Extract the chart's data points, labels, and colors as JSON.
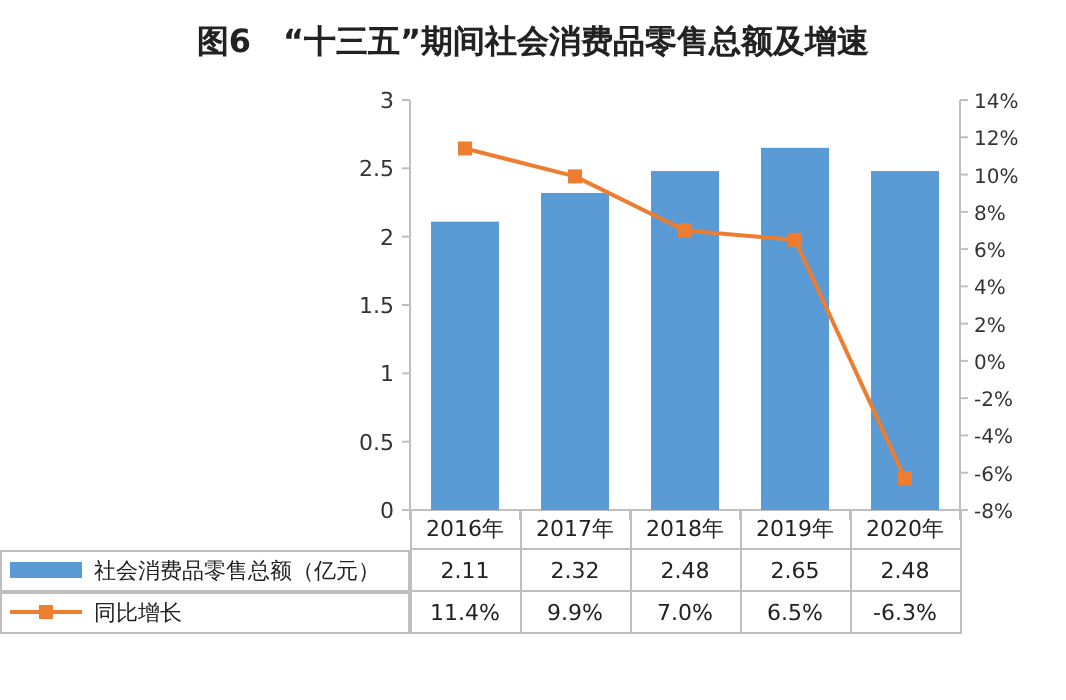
{
  "chart_data": {
    "type": "bar",
    "title": "图6　“十三五”期间社会消费品零售总额及增速",
    "categories": [
      "2016年",
      "2017年",
      "2018年",
      "2019年",
      "2020年"
    ],
    "series": [
      {
        "name": "社会消费品零售总额（亿元）",
        "color": "#5b9bd5",
        "values": [
          2.11,
          2.32,
          2.48,
          2.65,
          2.48
        ],
        "value_labels": [
          "2.11",
          "2.32",
          "2.48",
          "2.65",
          "2.48"
        ]
      },
      {
        "name": "同比增长",
        "type": "line",
        "axis": "y2",
        "marker": "square",
        "color": "#ed7d31",
        "values": [
          11.4,
          9.9,
          7.0,
          6.5,
          -6.3
        ],
        "value_labels": [
          "11.4%",
          "9.9%",
          "7.0%",
          "6.5%",
          "-6.3%"
        ]
      }
    ],
    "ylim": [
      0,
      3
    ],
    "yticks": [
      0,
      0.5,
      1,
      1.5,
      2,
      2.5,
      3
    ],
    "y2lim": [
      -8,
      14
    ],
    "y2ticks": [
      {
        "value": -8,
        "label": "-8%"
      },
      {
        "value": -6,
        "label": "-6%"
      },
      {
        "value": -4,
        "label": "-4%"
      },
      {
        "value": -2,
        "label": "-2%"
      },
      {
        "value": 0,
        "label": "0%"
      },
      {
        "value": 2,
        "label": "2%"
      },
      {
        "value": 4,
        "label": "4%"
      },
      {
        "value": 6,
        "label": "6%"
      },
      {
        "value": 8,
        "label": "8%"
      },
      {
        "value": 10,
        "label": "10%"
      },
      {
        "value": 12,
        "label": "12%"
      },
      {
        "value": 14,
        "label": "14%"
      }
    ],
    "legend": "bottom"
  }
}
